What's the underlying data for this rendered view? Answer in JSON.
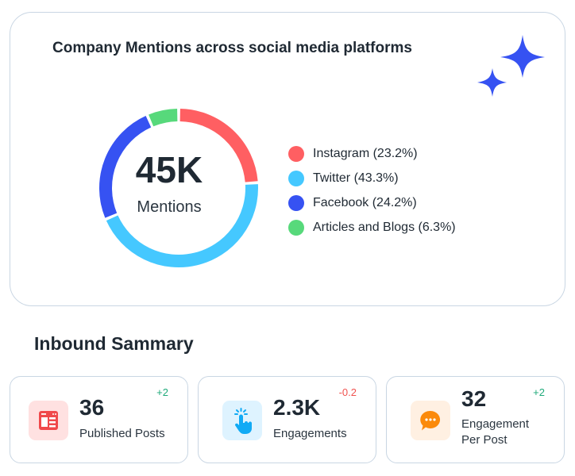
{
  "card": {
    "title": "Company Mentions across social media platforms",
    "total_value": "45K",
    "total_label": "Mentions"
  },
  "chart_data": {
    "type": "pie",
    "title": "Company Mentions across social media platforms",
    "categories": [
      "Instagram",
      "Twitter",
      "Facebook",
      "Articles and Blogs"
    ],
    "values": [
      23.2,
      43.3,
      24.2,
      6.3
    ],
    "colors": [
      "#ff5f62",
      "#45c8ff",
      "#3652f2",
      "#57d97b"
    ],
    "legend_labels": [
      "Instagram (23.2%)",
      "Twitter (43.3%)",
      "Facebook (24.2%)",
      "Articles and Blogs (6.3%)"
    ],
    "legend_position": "right"
  },
  "summary": {
    "title": "Inbound Sammary",
    "stats": [
      {
        "value": "36",
        "label": "Published Posts",
        "delta": "+2",
        "icon": "browser-window-icon"
      },
      {
        "value": "2.3K",
        "label": "Engagements",
        "delta": "-0.2",
        "icon": "tap-hand-icon"
      },
      {
        "value": "32",
        "label": "Engagement Per Post",
        "delta": "+2",
        "icon": "chat-bubble-icon"
      }
    ]
  },
  "colors": {
    "positive": "#1faa7a",
    "negative": "#f0524f",
    "accent": "#3652f2"
  }
}
